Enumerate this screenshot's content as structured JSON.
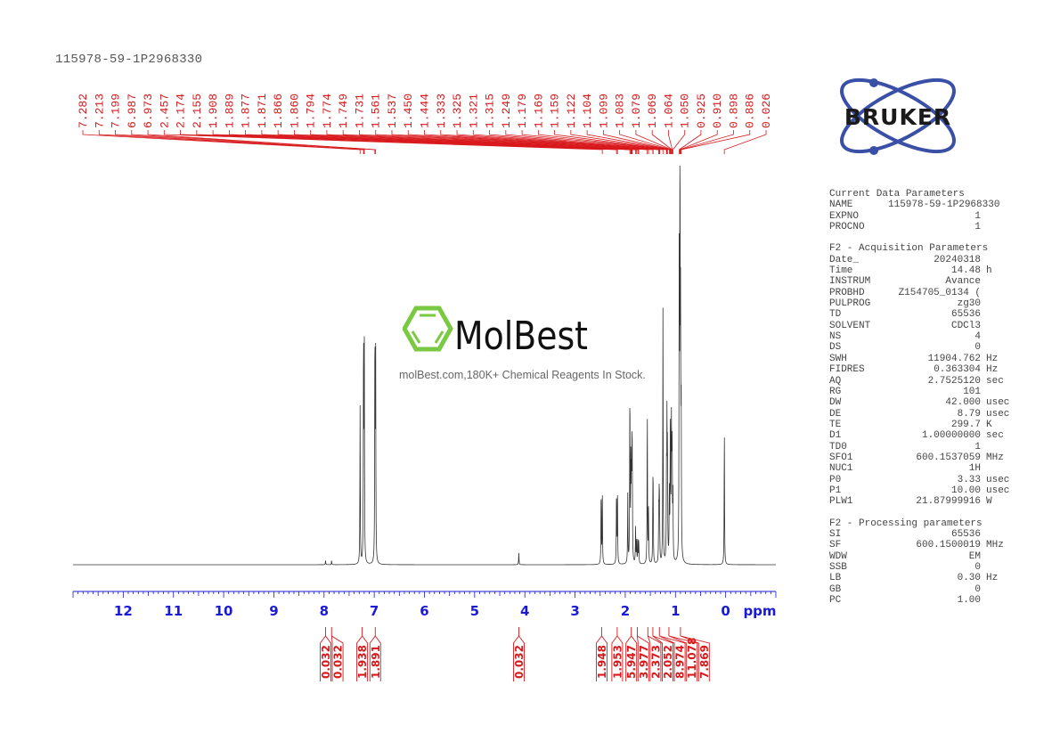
{
  "title": "115978-59-1P2968330",
  "watermark": {
    "brand": "MolBest",
    "tagline": "molBest.com,180K+ Chemical Reagents In Stock."
  },
  "logo": {
    "text": "BRUKER",
    "color": "#3a4fa6"
  },
  "colors": {
    "peak_labels": "#d8191c",
    "axis": "#1a1ad4",
    "spectrum": "#333333",
    "watermark_green": "#7ac943"
  },
  "parameters": [
    {
      "heading": "Current Data Parameters",
      "rows": [
        {
          "k": "NAME",
          "v": "115978-59-1P2968330",
          "u": ""
        },
        {
          "k": "EXPNO",
          "v": "1",
          "u": ""
        },
        {
          "k": "PROCNO",
          "v": "1",
          "u": ""
        }
      ]
    },
    {
      "heading": "F2 - Acquisition Parameters",
      "rows": [
        {
          "k": "Date_",
          "v": "20240318",
          "u": ""
        },
        {
          "k": "Time",
          "v": "14.48",
          "u": "h"
        },
        {
          "k": "INSTRUM",
          "v": "Avance",
          "u": ""
        },
        {
          "k": "PROBHD",
          "v": "Z154705_0134 (",
          "u": ""
        },
        {
          "k": "PULPROG",
          "v": "zg30",
          "u": ""
        },
        {
          "k": "TD",
          "v": "65536",
          "u": ""
        },
        {
          "k": "SOLVENT",
          "v": "CDCl3",
          "u": ""
        },
        {
          "k": "NS",
          "v": "4",
          "u": ""
        },
        {
          "k": "DS",
          "v": "0",
          "u": ""
        },
        {
          "k": "SWH",
          "v": "11904.762",
          "u": "Hz"
        },
        {
          "k": "FIDRES",
          "v": "0.363304",
          "u": "Hz"
        },
        {
          "k": "AQ",
          "v": "2.7525120",
          "u": "sec"
        },
        {
          "k": "RG",
          "v": "101",
          "u": ""
        },
        {
          "k": "DW",
          "v": "42.000",
          "u": "usec"
        },
        {
          "k": "DE",
          "v": "8.79",
          "u": "usec"
        },
        {
          "k": "TE",
          "v": "299.7",
          "u": "K"
        },
        {
          "k": "D1",
          "v": "1.00000000",
          "u": "sec"
        },
        {
          "k": "TD0",
          "v": "1",
          "u": ""
        },
        {
          "k": "SFO1",
          "v": "600.1537059",
          "u": "MHz"
        },
        {
          "k": "NUC1",
          "v": "1H",
          "u": ""
        },
        {
          "k": "P0",
          "v": "3.33",
          "u": "usec"
        },
        {
          "k": "P1",
          "v": "10.00",
          "u": "usec"
        },
        {
          "k": "PLW1",
          "v": "21.87999916",
          "u": "W"
        }
      ]
    },
    {
      "heading": "F2 - Processing parameters",
      "rows": [
        {
          "k": "SI",
          "v": "65536",
          "u": ""
        },
        {
          "k": "SF",
          "v": "600.1500019",
          "u": "MHz"
        },
        {
          "k": "WDW",
          "v": "EM",
          "u": ""
        },
        {
          "k": "SSB",
          "v": "0",
          "u": ""
        },
        {
          "k": "LB",
          "v": "0.30",
          "u": "Hz"
        },
        {
          "k": "GB",
          "v": "0",
          "u": ""
        },
        {
          "k": "PC",
          "v": "1.00",
          "u": ""
        }
      ]
    }
  ],
  "chart_data": {
    "type": "line",
    "title": "115978-59-1P2968330",
    "xlabel": "ppm",
    "ylabel": "",
    "xlim": [
      13.0,
      -1.0
    ],
    "x_reversed": true,
    "grid": false,
    "x_ticks": [
      12,
      11,
      10,
      9,
      8,
      7,
      6,
      5,
      4,
      3,
      2,
      1,
      0
    ],
    "peak_labels": [
      7.282,
      7.213,
      7.199,
      6.987,
      6.973,
      2.457,
      2.174,
      2.155,
      1.908,
      1.889,
      1.877,
      1.871,
      1.866,
      1.86,
      1.794,
      1.774,
      1.749,
      1.731,
      1.561,
      1.537,
      1.45,
      1.444,
      1.333,
      1.325,
      1.321,
      1.315,
      1.249,
      1.179,
      1.169,
      1.159,
      1.122,
      1.104,
      1.099,
      1.083,
      1.079,
      1.069,
      1.064,
      1.05,
      0.925,
      0.91,
      0.898,
      0.886,
      0.026
    ],
    "peaks": [
      {
        "ppm": 7.97,
        "h": 0.01
      },
      {
        "ppm": 7.85,
        "h": 0.01
      },
      {
        "ppm": 7.282,
        "h": 0.39
      },
      {
        "ppm": 7.213,
        "h": 0.57
      },
      {
        "ppm": 7.199,
        "h": 0.56
      },
      {
        "ppm": 6.987,
        "h": 0.58
      },
      {
        "ppm": 6.973,
        "h": 0.56
      },
      {
        "ppm": 4.12,
        "h": 0.03
      },
      {
        "ppm": 2.48,
        "h": 0.19
      },
      {
        "ppm": 2.457,
        "h": 0.18
      },
      {
        "ppm": 2.174,
        "h": 0.19
      },
      {
        "ppm": 2.155,
        "h": 0.17
      },
      {
        "ppm": 1.95,
        "h": 0.17
      },
      {
        "ppm": 1.908,
        "h": 0.44
      },
      {
        "ppm": 1.889,
        "h": 0.24
      },
      {
        "ppm": 1.877,
        "h": 0.21
      },
      {
        "ppm": 1.866,
        "h": 0.21
      },
      {
        "ppm": 1.86,
        "h": 0.2
      },
      {
        "ppm": 1.794,
        "h": 0.09
      },
      {
        "ppm": 1.774,
        "h": 0.06
      },
      {
        "ppm": 1.749,
        "h": 0.06
      },
      {
        "ppm": 1.731,
        "h": 0.06
      },
      {
        "ppm": 1.561,
        "h": 0.39
      },
      {
        "ppm": 1.537,
        "h": 0.13
      },
      {
        "ppm": 1.45,
        "h": 0.16
      },
      {
        "ppm": 1.444,
        "h": 0.14
      },
      {
        "ppm": 1.333,
        "h": 0.12
      },
      {
        "ppm": 1.325,
        "h": 0.1
      },
      {
        "ppm": 1.321,
        "h": 0.09
      },
      {
        "ppm": 1.315,
        "h": 0.08
      },
      {
        "ppm": 1.249,
        "h": 0.63
      },
      {
        "ppm": 1.179,
        "h": 0.2
      },
      {
        "ppm": 1.169,
        "h": 0.32
      },
      {
        "ppm": 1.159,
        "h": 0.26
      },
      {
        "ppm": 1.122,
        "h": 0.18
      },
      {
        "ppm": 1.104,
        "h": 0.22
      },
      {
        "ppm": 1.099,
        "h": 0.2
      },
      {
        "ppm": 1.083,
        "h": 0.19
      },
      {
        "ppm": 1.079,
        "h": 0.2
      },
      {
        "ppm": 1.069,
        "h": 0.18
      },
      {
        "ppm": 1.064,
        "h": 0.17
      },
      {
        "ppm": 1.05,
        "h": 0.16
      },
      {
        "ppm": 0.925,
        "h": 0.72
      },
      {
        "ppm": 0.91,
        "h": 1.0
      },
      {
        "ppm": 0.898,
        "h": 0.55
      },
      {
        "ppm": 0.886,
        "h": 0.35
      },
      {
        "ppm": 0.026,
        "h": 0.34
      }
    ],
    "integrals": [
      {
        "center": 7.97,
        "value": "0.032"
      },
      {
        "center": 7.85,
        "value": "0.032"
      },
      {
        "center": 7.24,
        "value": "1.938"
      },
      {
        "center": 6.98,
        "value": "1.891"
      },
      {
        "center": 4.12,
        "value": "0.032"
      },
      {
        "center": 2.47,
        "value": "1.948"
      },
      {
        "center": 2.16,
        "value": "1.953"
      },
      {
        "center": 1.88,
        "value": "5.947"
      },
      {
        "center": 1.76,
        "value": "3.977"
      },
      {
        "center": 1.55,
        "value": "2.373"
      },
      {
        "center": 1.45,
        "value": "2.052"
      },
      {
        "center": 1.32,
        "value": "8.974"
      },
      {
        "center": 1.13,
        "value": "11.078"
      },
      {
        "center": 0.9,
        "value": "7.869"
      }
    ]
  }
}
